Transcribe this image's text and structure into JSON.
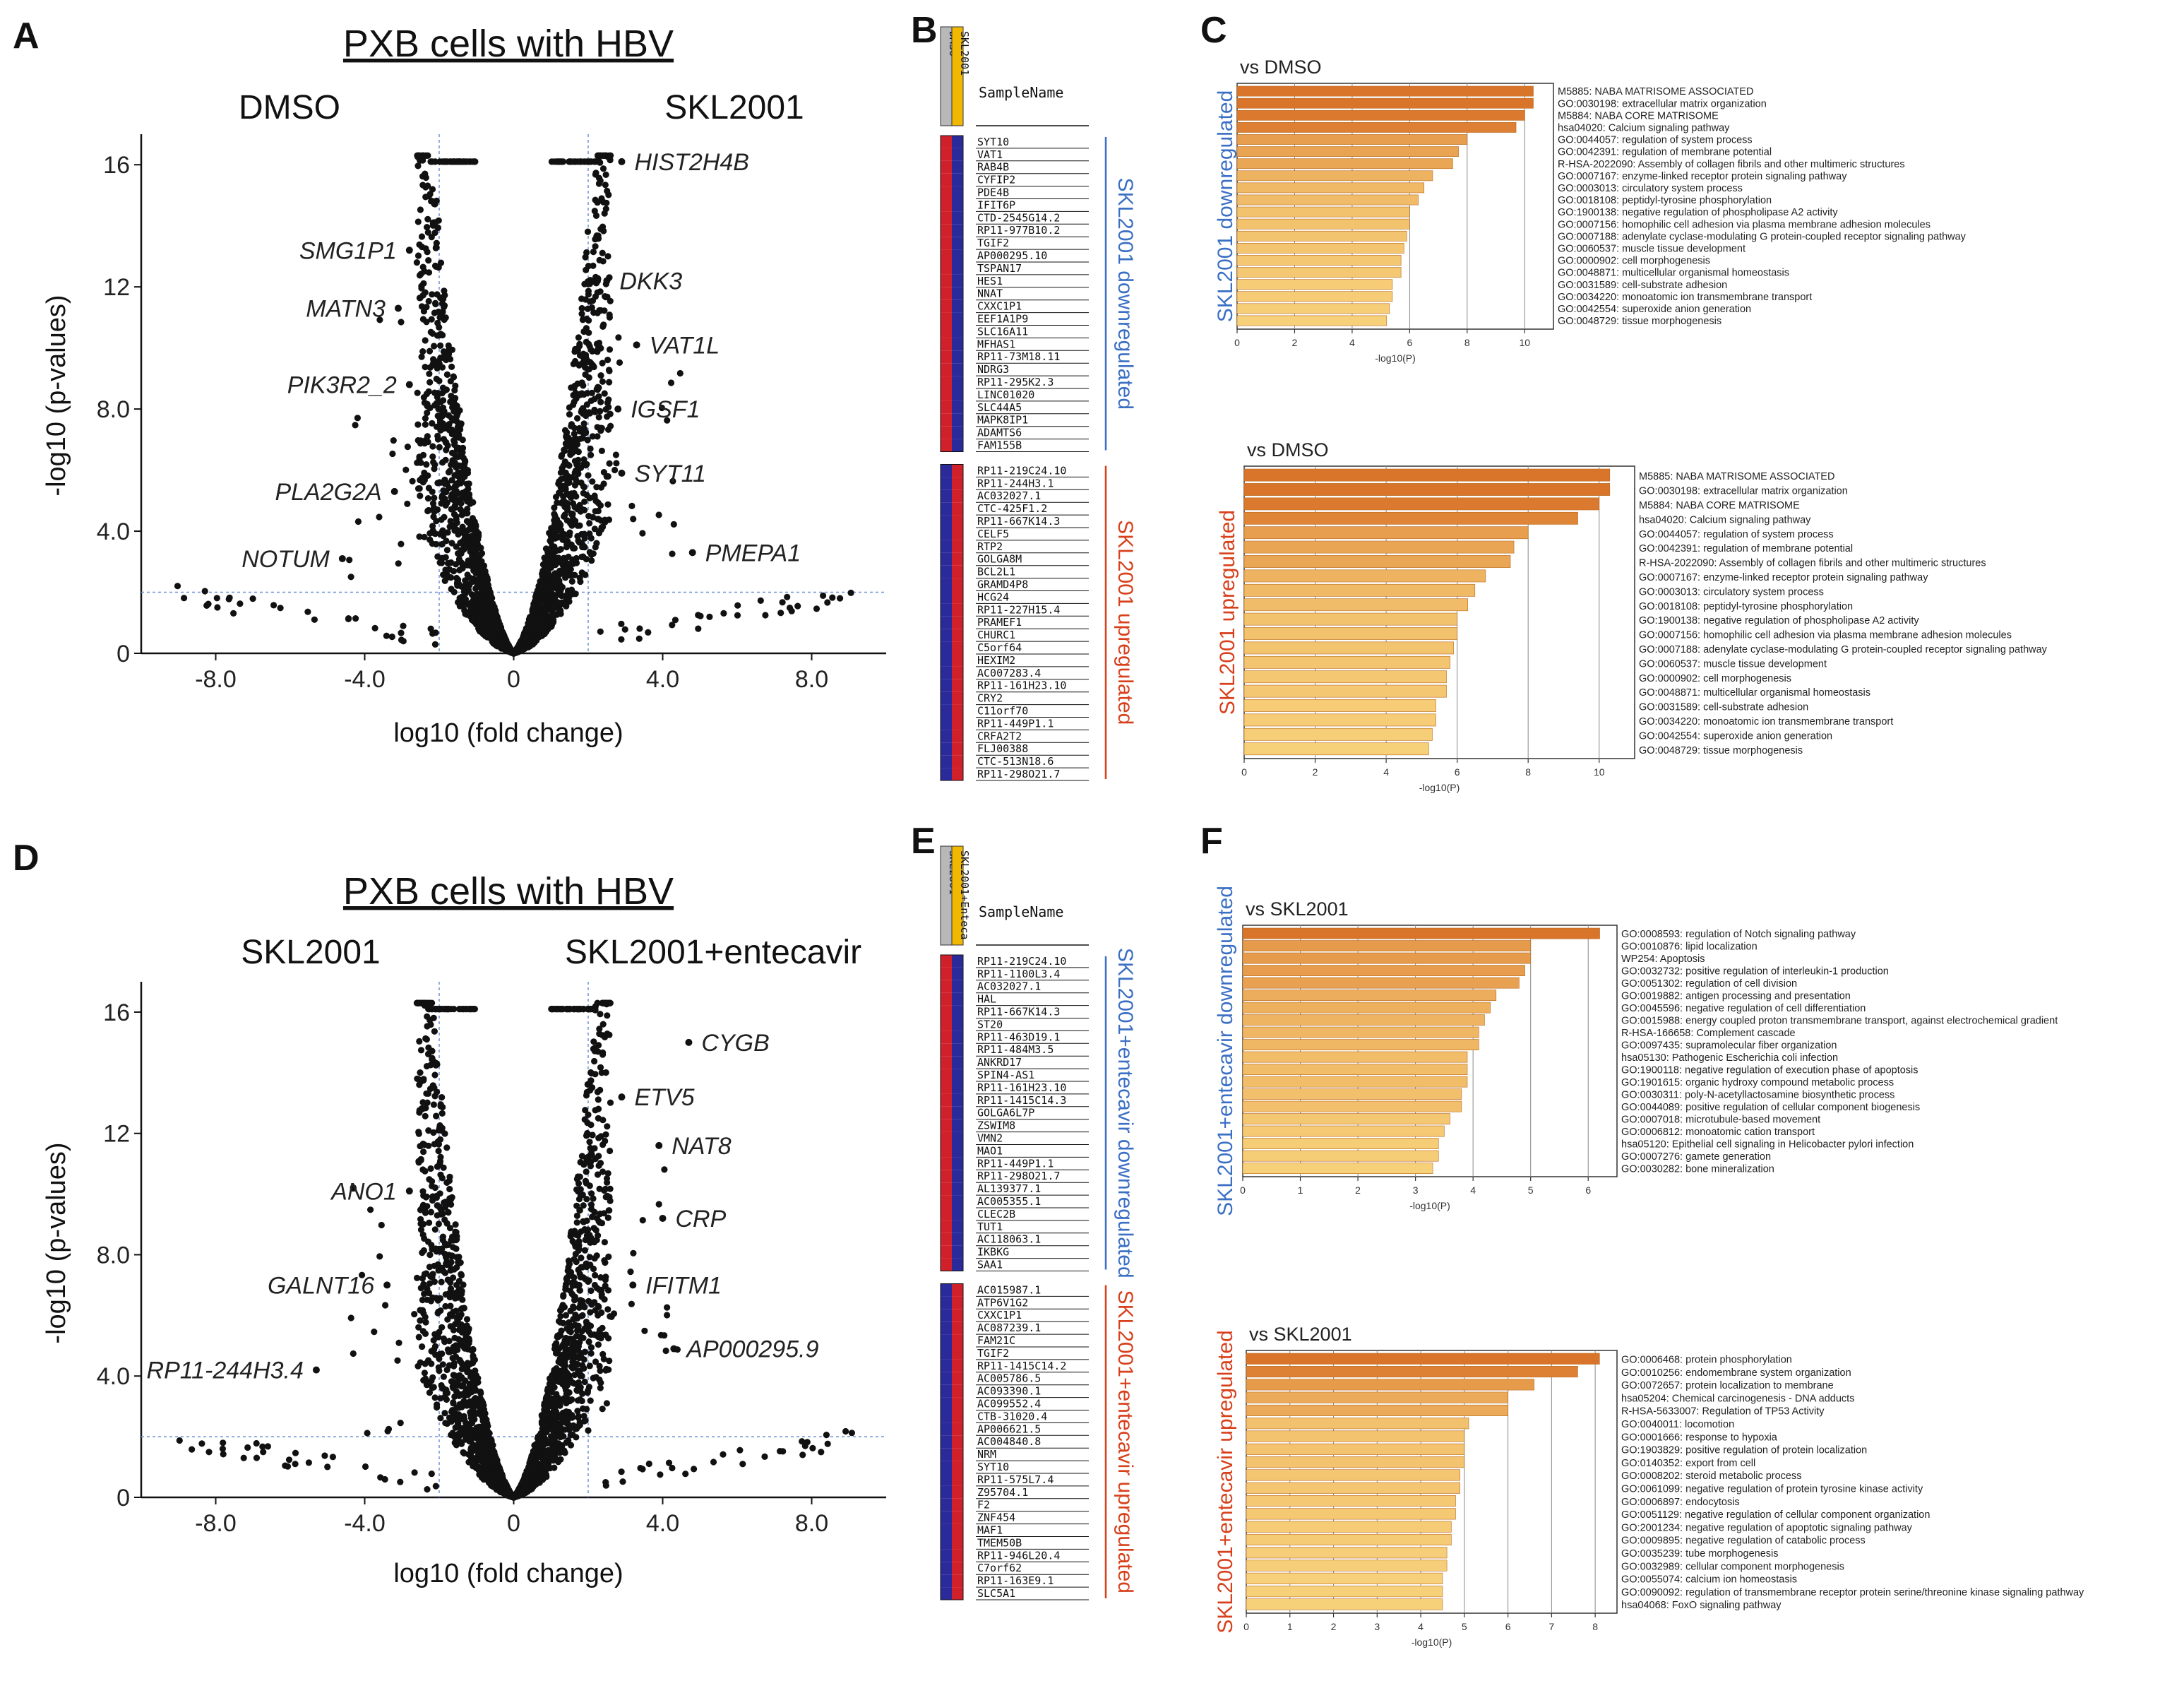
{
  "chart_data": [
    {
      "id": "A",
      "type": "scatter",
      "title": "PXB cells with HBV",
      "left_label": "DMSO",
      "right_label": "SKL2001",
      "xlabel": "log10 (fold change)",
      "ylabel": "-log10 (p-values)",
      "xlim": [
        -10,
        10
      ],
      "ylim": [
        0,
        17
      ],
      "xticks": [
        -8.0,
        -4.0,
        0,
        4.0,
        8.0
      ],
      "yticks": [
        0,
        4.0,
        8.0,
        12,
        16
      ],
      "thresholds": {
        "x": [
          -2,
          2
        ],
        "y": 2
      },
      "annotations": [
        {
          "label": "HIST2H4B",
          "x": 2.9,
          "y": 16.1
        },
        {
          "label": "DKK3",
          "x": 2.5,
          "y": 12.2
        },
        {
          "label": "VAT1L",
          "x": 3.3,
          "y": 10.1
        },
        {
          "label": "IGSF1",
          "x": 2.8,
          "y": 8.0
        },
        {
          "label": "SYT11",
          "x": 2.9,
          "y": 5.9
        },
        {
          "label": "PMEPA1",
          "x": 4.8,
          "y": 3.3
        },
        {
          "label": "SMG1P1",
          "x": -2.8,
          "y": 13.2
        },
        {
          "label": "MATN3",
          "x": -3.1,
          "y": 11.3
        },
        {
          "label": "PIK3R2_2",
          "x": -2.8,
          "y": 8.8
        },
        {
          "label": "PLA2G2A",
          "x": -3.2,
          "y": 5.3
        },
        {
          "label": "NOTUM",
          "x": -4.6,
          "y": 3.1
        }
      ]
    },
    {
      "id": "D",
      "type": "scatter",
      "title": "PXB cells with HBV",
      "left_label": "SKL2001",
      "right_label": "SKL2001+entecavir",
      "xlabel": "log10 (fold change)",
      "ylabel": "-log10 (p-values)",
      "xlim": [
        -10,
        10
      ],
      "ylim": [
        0,
        17
      ],
      "xticks": [
        -8.0,
        -4.0,
        0,
        4.0,
        8.0
      ],
      "yticks": [
        0,
        4.0,
        8.0,
        12,
        16
      ],
      "thresholds": {
        "x": [
          -2,
          2
        ],
        "y": 2
      },
      "annotations": [
        {
          "label": "CYGB",
          "x": 4.7,
          "y": 15.0
        },
        {
          "label": "ETV5",
          "x": 2.9,
          "y": 13.2
        },
        {
          "label": "NAT8",
          "x": 3.9,
          "y": 11.6
        },
        {
          "label": "CRP",
          "x": 4.0,
          "y": 9.2
        },
        {
          "label": "IFITM1",
          "x": 3.2,
          "y": 7.0
        },
        {
          "label": "AP000295.9",
          "x": 4.3,
          "y": 4.9
        },
        {
          "label": "ANO1",
          "x": -2.8,
          "y": 10.1
        },
        {
          "label": "GALNT16",
          "x": -3.4,
          "y": 7.0
        },
        {
          "label": "RP11-244H3.4",
          "x": -5.3,
          "y": 4.2
        }
      ]
    },
    {
      "id": "C1",
      "type": "bar",
      "orientation": "horizontal",
      "title": "vs DMSO",
      "side_label": "SKL2001 downregulated",
      "xlabel": "-log10(P)",
      "xlim": [
        0,
        11
      ],
      "xticks": [
        0,
        2,
        4,
        6,
        8,
        10
      ],
      "categories": [
        "M5885: NABA MATRISOME ASSOCIATED",
        "GO:0030198: extracellular matrix organization",
        "M5884: NABA CORE MATRISOME",
        "hsa04020: Calcium signaling pathway",
        "GO:0044057: regulation of system process",
        "GO:0042391: regulation of membrane potential",
        "R-HSA-2022090: Assembly of collagen fibrils and other multimeric structures",
        "GO:0007167: enzyme-linked receptor protein signaling pathway",
        "GO:0003013: circulatory system process",
        "GO:0018108: peptidyl-tyrosine phosphorylation",
        "GO:1900138: negative regulation of phospholipase A2 activity",
        "GO:0007156: homophilic cell adhesion via plasma membrane adhesion molecules",
        "GO:0007188: adenylate cyclase-modulating G protein-coupled receptor signaling pathway",
        "GO:0060537: muscle tissue development",
        "GO:0000902: cell morphogenesis",
        "GO:0048871: multicellular organismal homeostasis",
        "GO:0031589: cell-substrate adhesion",
        "GO:0034220: monoatomic ion transmembrane transport",
        "GO:0042554: superoxide anion generation",
        "GO:0048729: tissue morphogenesis"
      ],
      "values": [
        10.3,
        10.3,
        10.0,
        9.7,
        8.0,
        7.7,
        7.5,
        6.8,
        6.5,
        6.3,
        6.0,
        6.0,
        5.9,
        5.8,
        5.7,
        5.7,
        5.4,
        5.4,
        5.3,
        5.2
      ]
    },
    {
      "id": "C2",
      "type": "bar",
      "orientation": "horizontal",
      "title": "vs DMSO",
      "side_label": "SKL2001 upregulated",
      "xlabel": "-log10(P)",
      "xlim": [
        0,
        11
      ],
      "xticks": [
        0,
        2,
        4,
        6,
        8,
        10
      ],
      "categories": [
        "M5885: NABA MATRISOME ASSOCIATED",
        "GO:0030198: extracellular matrix organization",
        "M5884: NABA CORE MATRISOME",
        "hsa04020: Calcium signaling pathway",
        "GO:0044057: regulation of system process",
        "GO:0042391: regulation of membrane potential",
        "R-HSA-2022090: Assembly of collagen fibrils and other multimeric structures",
        "GO:0007167: enzyme-linked receptor protein signaling pathway",
        "GO:0003013: circulatory system process",
        "GO:0018108: peptidyl-tyrosine phosphorylation",
        "GO:1900138: negative regulation of phospholipase A2 activity",
        "GO:0007156: homophilic cell adhesion via plasma membrane adhesion molecules",
        "GO:0007188: adenylate cyclase-modulating G protein-coupled receptor signaling pathway",
        "GO:0060537: muscle tissue development",
        "GO:0000902: cell morphogenesis",
        "GO:0048871: multicellular organismal homeostasis",
        "GO:0031589: cell-substrate adhesion",
        "GO:0034220: monoatomic ion transmembrane transport",
        "GO:0042554: superoxide anion generation",
        "GO:0048729: tissue morphogenesis"
      ],
      "values": [
        10.3,
        10.3,
        10.0,
        9.4,
        8.0,
        7.6,
        7.5,
        6.8,
        6.5,
        6.3,
        6.0,
        6.0,
        5.9,
        5.8,
        5.7,
        5.7,
        5.4,
        5.4,
        5.3,
        5.2
      ]
    },
    {
      "id": "F1",
      "type": "bar",
      "orientation": "horizontal",
      "title": "vs SKL2001",
      "side_label": "SKL2001+entecavir downregulated",
      "xlabel": "-log10(P)",
      "xlim": [
        0,
        6.5
      ],
      "xticks": [
        0,
        1,
        2,
        3,
        4,
        5,
        6
      ],
      "categories": [
        "GO:0008593: regulation of Notch signaling pathway",
        "GO:0010876: lipid localization",
        "WP254: Apoptosis",
        "GO:0032732: positive regulation of interleukin-1 production",
        "GO:0051302: regulation of cell division",
        "GO:0019882: antigen processing and presentation",
        "GO:0045596: negative regulation of cell differentiation",
        "GO:0015988: energy coupled proton transmembrane transport, against electrochemical gradient",
        "R-HSA-166658: Complement cascade",
        "GO:0097435: supramolecular fiber organization",
        "hsa05130: Pathogenic Escherichia coli infection",
        "GO:1900118: negative regulation of execution phase of apoptosis",
        "GO:1901615: organic hydroxy compound metabolic process",
        "GO:0030311: poly-N-acetyllactosamine biosynthetic process",
        "GO:0044089: positive regulation of cellular component biogenesis",
        "GO:0007018: microtubule-based movement",
        "GO:0006812: monoatomic cation transport",
        "hsa05120: Epithelial cell signaling in Helicobacter pylori infection",
        "GO:0007276: gamete generation",
        "GO:0030282: bone mineralization"
      ],
      "values": [
        6.2,
        5.0,
        5.0,
        4.9,
        4.8,
        4.4,
        4.3,
        4.2,
        4.1,
        4.1,
        3.9,
        3.9,
        3.9,
        3.8,
        3.8,
        3.6,
        3.5,
        3.4,
        3.4,
        3.3
      ]
    },
    {
      "id": "F2",
      "type": "bar",
      "orientation": "horizontal",
      "title": "vs SKL2001",
      "side_label": "SKL2001+entecavir upregulated",
      "xlabel": "-log10(P)",
      "xlim": [
        0,
        8.5
      ],
      "xticks": [
        0,
        1,
        2,
        3,
        4,
        5,
        6,
        7,
        8
      ],
      "categories": [
        "GO:0006468: protein phosphorylation",
        "GO:0010256: endomembrane system organization",
        "GO:0072657: protein localization to membrane",
        "hsa05204: Chemical carcinogenesis - DNA adducts",
        "R-HSA-5633007: Regulation of TP53 Activity",
        "GO:0040011: locomotion",
        "GO:0001666: response to hypoxia",
        "GO:1903829: positive regulation of protein localization",
        "GO:0140352: export from cell",
        "GO:0008202: steroid metabolic process",
        "GO:0061099: negative regulation of protein tyrosine kinase activity",
        "GO:0006897: endocytosis",
        "GO:0051129: negative regulation of cellular component organization",
        "GO:2001234: negative regulation of apoptotic signaling pathway",
        "GO:0009895: negative regulation of catabolic process",
        "GO:0035239: tube morphogenesis",
        "GO:0032989: cellular component morphogenesis",
        "GO:0055074: calcium ion homeostasis",
        "GO:0090092: regulation of transmembrane receptor protein serine/threonine kinase signaling pathway",
        "hsa04068: FoxO signaling pathway"
      ],
      "values": [
        8.1,
        7.6,
        6.6,
        6.0,
        6.0,
        5.1,
        5.0,
        5.0,
        5.0,
        4.9,
        4.9,
        4.8,
        4.8,
        4.7,
        4.7,
        4.6,
        4.6,
        4.5,
        4.5,
        4.5
      ]
    },
    {
      "id": "B",
      "type": "heatmap",
      "header_sample": "SampleName",
      "col_labels": [
        "DMSO",
        "SKL2001"
      ],
      "col_colors": [
        "#b8b8b8",
        "#f0b800"
      ],
      "groups": [
        {
          "label": "SKL2001 downregulated",
          "label_color": "#3b6fc4",
          "colors": [
            "#d0202a",
            "#2a2a9a"
          ],
          "rows": [
            "SYT10",
            "VAT1",
            "RAB4B",
            "CYFIP2",
            "PDE4B",
            "IFIT6P",
            "CTD-2545G14.2",
            "RP11-977B10.2",
            "TGIF2",
            "AP000295.10",
            "TSPAN17",
            "HES1",
            "NNAT",
            "CXXC1P1",
            "EEF1A1P9",
            "SLC16A11",
            "MFHAS1",
            "RP11-73M18.11",
            "NDRG3",
            "RP11-295K2.3",
            "LINC01020",
            "SLC44A5",
            "MAPK8IP1",
            "ADAMTS6",
            "FAM155B"
          ]
        },
        {
          "label": "SKL2001 upregulated",
          "label_color": "#d8401c",
          "colors": [
            "#2a2a9a",
            "#d0202a"
          ],
          "rows": [
            "RP11-219C24.10",
            "RP11-244H3.1",
            "AC032027.1",
            "CTC-425F1.2",
            "RP11-667K14.3",
            "CELF5",
            "RTP2",
            "GOLGA8M",
            "BCL2L1",
            "GRAMD4P8",
            "HCG24",
            "RP11-227H15.4",
            "PRAMEF1",
            "CHURC1",
            "C5orf64",
            "HEXIM2",
            "AC007283.4",
            "RP11-161H23.10",
            "CRY2",
            "C11orf70",
            "RP11-449P1.1",
            "CRFA2T2",
            "FLJ00388",
            "CTC-513N18.6",
            "RP11-298O21.7"
          ]
        }
      ]
    },
    {
      "id": "E",
      "type": "heatmap",
      "header_sample": "SampleName",
      "col_labels": [
        "SKL2001",
        "SKL2001+Enteca"
      ],
      "col_colors": [
        "#b8b8b8",
        "#f0b800"
      ],
      "groups": [
        {
          "label": "SKL2001+entecavir downregulated",
          "label_color": "#3b6fc4",
          "colors": [
            "#d0202a",
            "#2a2a9a"
          ],
          "rows": [
            "RP11-219C24.10",
            "RP11-1100L3.4",
            "AC032027.1",
            "HAL",
            "RP11-667K14.3",
            "ST20",
            "RP11-463D19.1",
            "RP11-484M3.5",
            "ANKRD17",
            "SPIN4-AS1",
            "RP11-161H23.10",
            "RP11-1415C14.3",
            "GOLGA6L7P",
            "ZSWIM8",
            "VMN2",
            "MAO1",
            "RP11-449P1.1",
            "RP11-298O21.7",
            "AL139377.1",
            "AC005355.1",
            "CLEC2B",
            "TUT1",
            "AC118063.1",
            "IKBKG",
            "SAA1"
          ]
        },
        {
          "label": "SKL2001+entecavir upregulated",
          "label_color": "#d8401c",
          "colors": [
            "#2a2a9a",
            "#d0202a"
          ],
          "rows": [
            "AC015987.1",
            "ATP6V1G2",
            "CXXC1P1",
            "AC087239.1",
            "FAM21C",
            "TGIF2",
            "RP11-1415C14.2",
            "AC005786.5",
            "AC093390.1",
            "AC099552.4",
            "CTB-31020.4",
            "AP006621.5",
            "AC004840.8",
            "NRM",
            "SYT10",
            "RP11-575L7.4",
            "Z95704.1",
            "F2",
            "ZNF454",
            "MAF1",
            "TMEM50B",
            "RP11-946L20.4",
            "C7orf62",
            "RP11-163E9.1",
            "SLC5A1"
          ]
        }
      ]
    }
  ],
  "panels": {
    "A": "A",
    "B": "B",
    "C": "C",
    "D": "D",
    "E": "E",
    "F": "F"
  },
  "colors": {
    "bar_dark": "#d9752a",
    "bar_light": "#f7d07a",
    "threshold_line": "#6f8fd8",
    "blue_label": "#3b6fc4",
    "red_label": "#d8401c"
  }
}
